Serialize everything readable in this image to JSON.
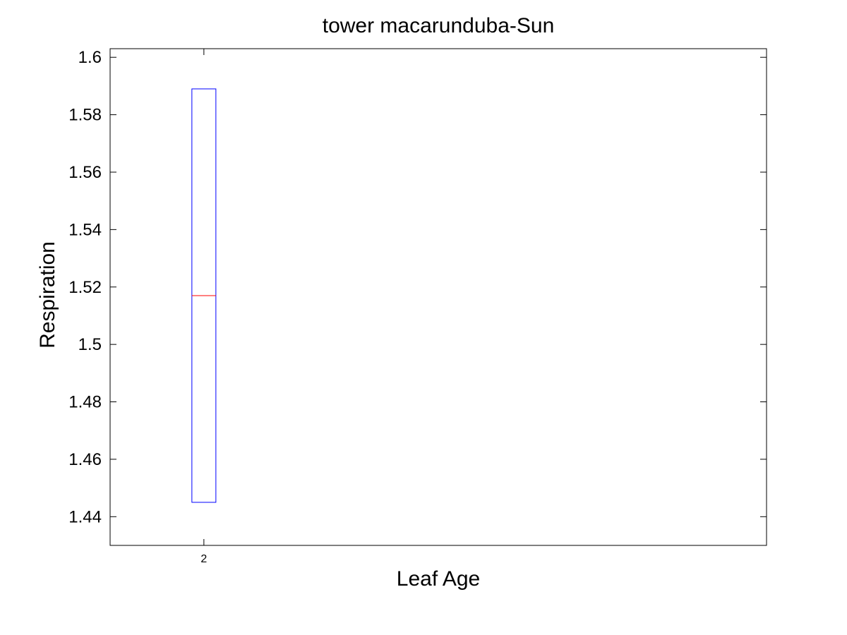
{
  "chart_data": {
    "type": "box",
    "title": "tower macarunduba-Sun",
    "xlabel": "Leaf Age",
    "ylabel": "Respiration",
    "categories": [
      "2"
    ],
    "boxes": [
      {
        "category": "2",
        "q1": 1.445,
        "median": 1.517,
        "q3": 1.589,
        "whisker_low": 1.445,
        "whisker_high": 1.589
      }
    ],
    "ylim": [
      1.43,
      1.603
    ],
    "yticks": [
      1.44,
      1.46,
      1.48,
      1.5,
      1.52,
      1.54,
      1.56,
      1.58,
      1.6
    ],
    "ytick_labels": [
      "1.44",
      "1.46",
      "1.48",
      "1.5",
      "1.52",
      "1.54",
      "1.56",
      "1.58",
      "1.6"
    ],
    "grid": false,
    "colors": {
      "box": "#0000ff",
      "median": "#ff0000",
      "axes": "#000000"
    }
  }
}
